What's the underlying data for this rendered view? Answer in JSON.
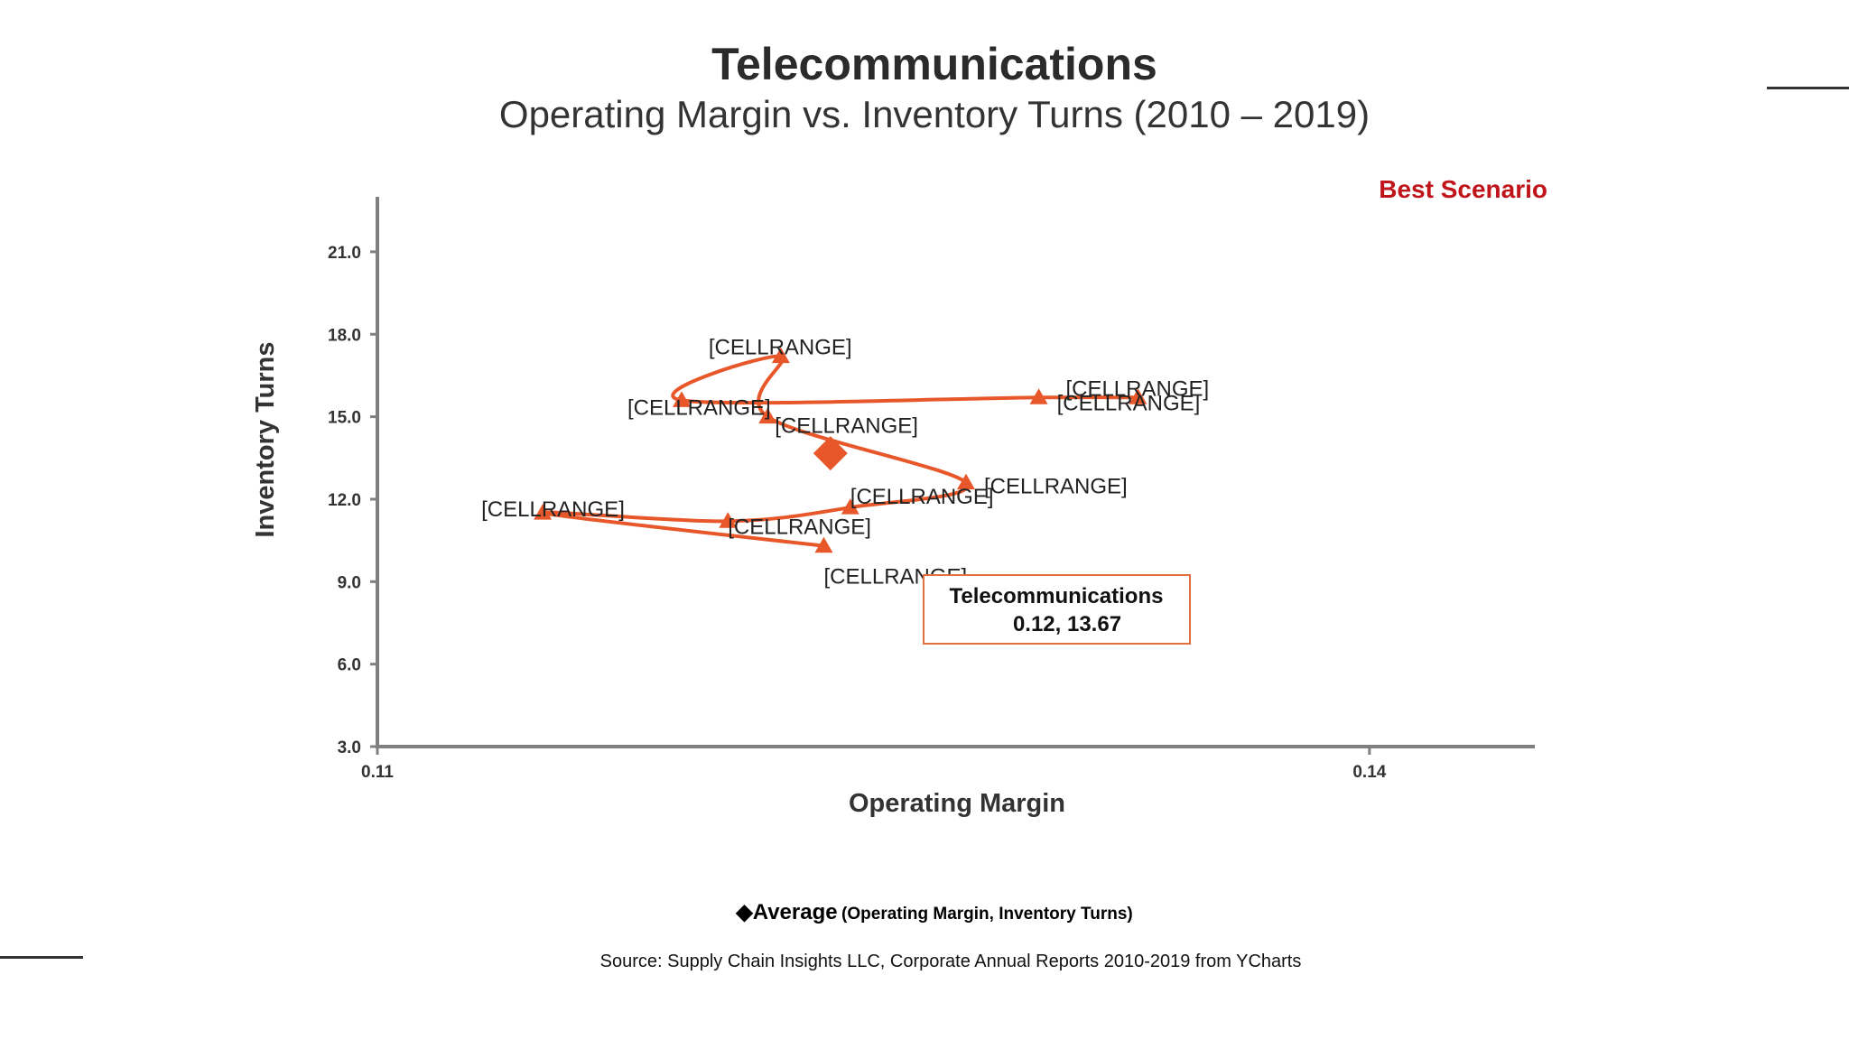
{
  "page": {
    "title": "Telecommunications",
    "subtitle": "Operating Margin vs. Inventory Turns (2010 – 2019)",
    "scenario_label": "Best Scenario",
    "legend": {
      "symbol": "◆",
      "main": "Average",
      "detail": "(Operating Margin, Inventory Turns)"
    },
    "source": "Source:  Supply Chain Insights LLC, Corporate Annual Reports 2010-2019 from YCharts"
  },
  "colors": {
    "series": "#e8572a",
    "axis": "#7f7f7f",
    "accent": "#c0141b",
    "callout_border": "#e07040"
  },
  "chart_data": {
    "type": "scatter",
    "title": "Telecommunications",
    "subtitle": "Operating Margin vs. Inventory Turns (2010 – 2019)",
    "xlabel": "Operating Margin",
    "ylabel": "Inventory Turns",
    "xlim": [
      0.11,
      0.145
    ],
    "ylim": [
      3.0,
      23.0
    ],
    "x_ticks": [
      0.11,
      0.14
    ],
    "x_tick_labels": [
      "0.11",
      "0.14"
    ],
    "y_ticks": [
      3.0,
      6.0,
      9.0,
      12.0,
      15.0,
      18.0,
      21.0
    ],
    "y_tick_labels": [
      "3.0",
      "6.0",
      "9.0",
      "12.0",
      "15.0",
      "18.0",
      "21.0"
    ],
    "series": [
      {
        "name": "Telecommunications",
        "marker": "triangle",
        "connected": true,
        "points": [
          {
            "x": 0.1235,
            "y": 10.3,
            "label": "[CELLRANGE]"
          },
          {
            "x": 0.115,
            "y": 11.5,
            "label": "[CELLRANGE]"
          },
          {
            "x": 0.1206,
            "y": 11.2,
            "label": "[CELLRANGE]"
          },
          {
            "x": 0.1243,
            "y": 11.7,
            "label": "[CELLRANGE]"
          },
          {
            "x": 0.1278,
            "y": 12.6,
            "label": "[CELLRANGE]"
          },
          {
            "x": 0.1218,
            "y": 15.0,
            "label": "[CELLRANGE]"
          },
          {
            "x": 0.1222,
            "y": 17.2,
            "label": "[CELLRANGE]"
          },
          {
            "x": 0.1192,
            "y": 15.6,
            "label": "[CELLRANGE]"
          },
          {
            "x": 0.13,
            "y": 15.7,
            "label": "[CELLRANGE]"
          },
          {
            "x": 0.133,
            "y": 15.7,
            "label": "[CELLRANGE]"
          }
        ]
      },
      {
        "name": "Average",
        "marker": "diamond",
        "points": [
          {
            "x": 0.1237,
            "y": 13.67
          }
        ]
      }
    ],
    "annotations": [
      {
        "line1": "Telecommunications",
        "line2": "0.12, 13.67"
      }
    ]
  }
}
